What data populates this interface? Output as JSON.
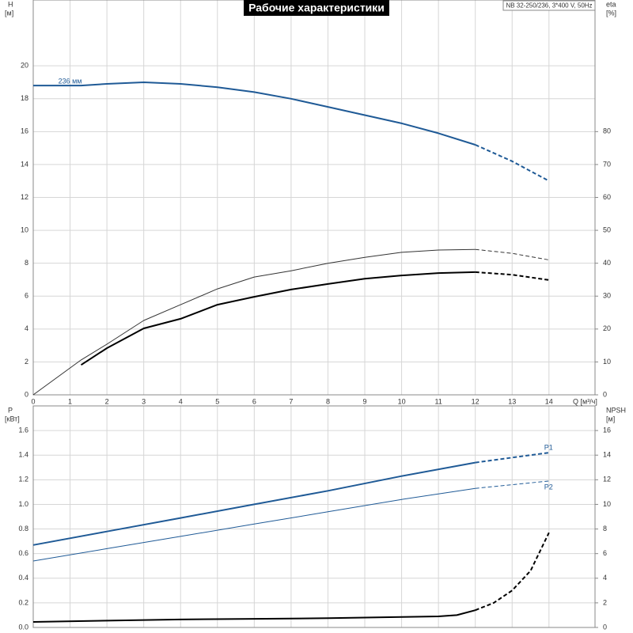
{
  "chart_data": [
    {
      "type": "line",
      "title": "Рабочие характеристики",
      "subtitle": "NB 32-250/236, 3*400 V, 50Hz",
      "x_label": "Q [м³/ч]",
      "y_label": "H",
      "y_unit": "[м]",
      "y2_label": "eta",
      "y2_unit": "[%]",
      "xlim": [
        0,
        15.25
      ],
      "xticks": [
        0,
        1,
        2,
        3,
        4,
        5,
        6,
        7,
        8,
        9,
        10,
        11,
        12,
        13,
        14
      ],
      "ylim": [
        0,
        24
      ],
      "yticks": [
        0,
        2,
        4,
        6,
        8,
        10,
        12,
        14,
        16,
        18,
        20
      ],
      "y2lim": [
        0,
        120
      ],
      "y2ticks": [
        0,
        10,
        20,
        30,
        40,
        50,
        60,
        70,
        80
      ],
      "grid": true,
      "series": [
        {
          "name": "236 мм",
          "color": "#1f5a96",
          "width": 2,
          "dashed_after": 12,
          "x": [
            0,
            1.3,
            2,
            3,
            4,
            5,
            6,
            7,
            8,
            9,
            10,
            11,
            12,
            13,
            14
          ],
          "values": [
            18.8,
            18.8,
            18.9,
            19.0,
            18.9,
            18.7,
            18.4,
            18.0,
            17.5,
            17.0,
            16.5,
            15.9,
            15.2,
            14.2,
            13.0
          ]
        },
        {
          "color": "#333333",
          "width": 1,
          "axis": "y2",
          "dashed_after": 12,
          "x": [
            0,
            1.3,
            2,
            3,
            4,
            5,
            6,
            7,
            8,
            9,
            10,
            11,
            12,
            13,
            14
          ],
          "values": [
            0,
            10.6,
            15.4,
            22.6,
            27.4,
            32.2,
            35.8,
            37.7,
            40.0,
            41.8,
            43.3,
            44.0,
            44.2,
            43.0,
            41.0
          ]
        },
        {
          "color": "#000000",
          "width": 2,
          "axis": "y2",
          "dashed_after": 12,
          "x": [
            1.3,
            2,
            3,
            4,
            5,
            6,
            7,
            8,
            9,
            10,
            11,
            12,
            13,
            14
          ],
          "values": [
            9.1,
            14.2,
            20.2,
            23.1,
            27.4,
            29.8,
            32.0,
            33.7,
            35.3,
            36.3,
            37.0,
            37.3,
            36.5,
            34.9
          ]
        }
      ]
    },
    {
      "type": "line",
      "y_label": "P",
      "y_unit": "[кВт]",
      "y2_label": "NPSH",
      "y2_unit": "[м]",
      "xlim": [
        0,
        15.25
      ],
      "ylim": [
        0,
        1.8
      ],
      "yticks": [
        {
          "value": 0,
          "label": "0.0"
        },
        0.2,
        0.4,
        0.6,
        0.8,
        {
          "value": 1,
          "label": "1.0"
        },
        1.2,
        1.4,
        1.6
      ],
      "y2lim": [
        0,
        18
      ],
      "y2ticks": [
        0,
        2,
        4,
        6,
        8,
        10,
        12,
        14,
        16
      ],
      "grid": true,
      "series": [
        {
          "name": "P1",
          "color": "#1f5a96",
          "width": 2,
          "dashed_after": 12,
          "x": [
            0,
            2,
            4,
            6,
            8,
            10,
            12,
            13,
            14
          ],
          "values": [
            0.67,
            0.78,
            0.89,
            1.0,
            1.11,
            1.23,
            1.34,
            1.38,
            1.42
          ]
        },
        {
          "name": "P2",
          "color": "#1f5a96",
          "width": 1,
          "dashed_after": 12,
          "x": [
            0,
            2,
            4,
            6,
            8,
            10,
            12,
            13,
            14
          ],
          "values": [
            0.54,
            0.64,
            0.74,
            0.84,
            0.94,
            1.04,
            1.13,
            1.16,
            1.19
          ]
        },
        {
          "color": "#000000",
          "width": 2,
          "axis": "y2",
          "dashed_after": 12,
          "x": [
            0,
            2,
            4,
            6,
            8,
            10,
            11,
            11.5,
            12,
            12.5,
            13,
            13.5,
            14
          ],
          "values": [
            0.45,
            0.55,
            0.65,
            0.7,
            0.75,
            0.85,
            0.9,
            1.0,
            1.4,
            2.0,
            3.0,
            4.6,
            7.7
          ]
        }
      ]
    }
  ]
}
